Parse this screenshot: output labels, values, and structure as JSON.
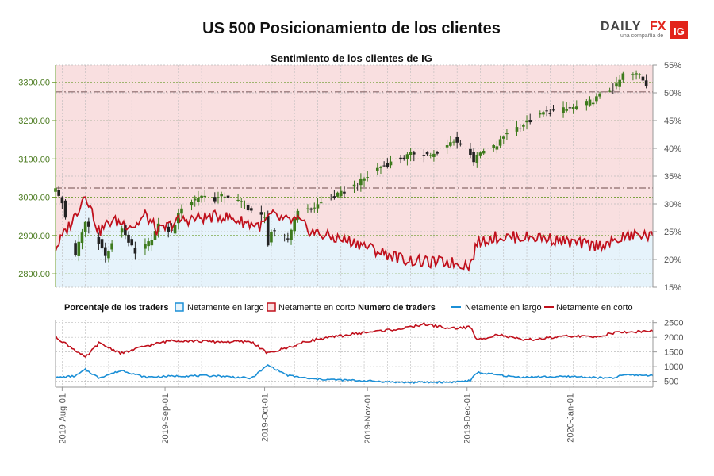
{
  "title": "US 500 Posicionamiento de los clientes",
  "logo": {
    "brand_a": "DAILY",
    "brand_b": "FX",
    "tagline": "una compañía de",
    "badge": "IG"
  },
  "colors": {
    "long": "#1b8fd6",
    "short": "#c0101c",
    "long_fill": "#e6f3fb",
    "short_fill": "#f9dfe0",
    "grid_green": "#6a9a2a",
    "grid_gray": "#bbbbbb",
    "candle_up": "#3d7a1c",
    "candle_down": "#222222",
    "ref_line": "#8a6a6a"
  },
  "chart_data": [
    {
      "type": "line",
      "title": "Sentimiento de los clientes de IG",
      "ylabel_left": "Price",
      "ylim_left": [
        2765,
        3345
      ],
      "yticks_left": [
        "2800.00",
        "2900.00",
        "3000.00",
        "3100.00",
        "3200.00",
        "3300.00"
      ],
      "ylim_right": [
        15,
        55
      ],
      "yticks_right": [
        "15%",
        "20%",
        "25%",
        "30%",
        "35%",
        "40%",
        "45%",
        "50%",
        "55%"
      ],
      "x_start": "2019-07-30",
      "x_end": "2020-01-26",
      "ref_lines": [
        3275,
        3024
      ],
      "price_anchors": [
        [
          "2019-07-30",
          3020
        ],
        [
          "2019-08-01",
          2985
        ],
        [
          "2019-08-05",
          2845
        ],
        [
          "2019-08-06",
          2880
        ],
        [
          "2019-08-08",
          2935
        ],
        [
          "2019-08-12",
          2885
        ],
        [
          "2019-08-14",
          2845
        ],
        [
          "2019-08-19",
          2920
        ],
        [
          "2019-08-23",
          2850
        ],
        [
          "2019-08-27",
          2880
        ],
        [
          "2019-08-30",
          2925
        ],
        [
          "2019-09-03",
          2910
        ],
        [
          "2019-09-06",
          2975
        ],
        [
          "2019-09-12",
          3005
        ],
        [
          "2019-09-16",
          2995
        ],
        [
          "2019-09-19",
          3005
        ],
        [
          "2019-09-24",
          2985
        ],
        [
          "2019-09-27",
          2965
        ],
        [
          "2019-10-01",
          2945
        ],
        [
          "2019-10-02",
          2880
        ],
        [
          "2019-10-03",
          2910
        ],
        [
          "2019-10-08",
          2890
        ],
        [
          "2019-10-11",
          2970
        ],
        [
          "2019-10-14",
          2965
        ],
        [
          "2019-10-18",
          2985
        ],
        [
          "2019-10-24",
          3010
        ],
        [
          "2019-10-30",
          3040
        ],
        [
          "2019-11-04",
          3075
        ],
        [
          "2019-11-08",
          3090
        ],
        [
          "2019-11-15",
          3115
        ],
        [
          "2019-11-22",
          3110
        ],
        [
          "2019-11-27",
          3150
        ],
        [
          "2019-12-02",
          3115
        ],
        [
          "2019-12-03",
          3095
        ],
        [
          "2019-12-05",
          3115
        ],
        [
          "2019-12-10",
          3135
        ],
        [
          "2019-12-13",
          3170
        ],
        [
          "2019-12-18",
          3190
        ],
        [
          "2019-12-24",
          3220
        ],
        [
          "2019-12-31",
          3230
        ],
        [
          "2020-01-03",
          3235
        ],
        [
          "2020-01-06",
          3245
        ],
        [
          "2020-01-08",
          3253
        ],
        [
          "2020-01-10",
          3265
        ],
        [
          "2020-01-15",
          3290
        ],
        [
          "2020-01-17",
          3320
        ],
        [
          "2020-01-22",
          3320
        ],
        [
          "2020-01-24",
          3295
        ]
      ],
      "short_pct_anchors": [
        [
          "2019-07-30",
          22
        ],
        [
          "2019-08-05",
          28
        ],
        [
          "2019-08-08",
          32
        ],
        [
          "2019-08-12",
          25
        ],
        [
          "2019-08-16",
          27
        ],
        [
          "2019-08-23",
          26
        ],
        [
          "2019-08-26",
          28
        ],
        [
          "2019-08-30",
          25
        ],
        [
          "2019-09-05",
          27
        ],
        [
          "2019-09-12",
          27.5
        ],
        [
          "2019-09-18",
          27.8
        ],
        [
          "2019-09-23",
          27
        ],
        [
          "2019-09-30",
          26
        ],
        [
          "2019-10-03",
          28
        ],
        [
          "2019-10-07",
          27
        ],
        [
          "2019-10-11",
          27
        ],
        [
          "2019-10-15",
          25
        ],
        [
          "2019-10-21",
          24
        ],
        [
          "2019-10-29",
          23
        ],
        [
          "2019-11-04",
          21.5
        ],
        [
          "2019-11-12",
          20
        ],
        [
          "2019-11-18",
          19.5
        ],
        [
          "2019-11-25",
          19.5
        ],
        [
          "2019-12-02",
          19
        ],
        [
          "2019-12-04",
          23
        ],
        [
          "2019-12-09",
          24
        ],
        [
          "2019-12-16",
          24
        ],
        [
          "2019-12-23",
          24
        ],
        [
          "2020-01-02",
          23
        ],
        [
          "2020-01-08",
          22.5
        ],
        [
          "2020-01-14",
          23
        ],
        [
          "2020-01-17",
          24
        ],
        [
          "2020-01-22",
          24.5
        ],
        [
          "2020-01-26",
          24
        ]
      ],
      "series": [
        {
          "name": "Netamente en largo",
          "color": "#1b8fd6",
          "values_pct": [
            22,
            17,
            35,
            21,
            23,
            15,
            38,
            22,
            21,
            22,
            18,
            21,
            22,
            19,
            20,
            18,
            17,
            25,
            20,
            19,
            25,
            22,
            24,
            21,
            21,
            23
          ]
        },
        {
          "name": "Netamente en corto",
          "color": "#c0101c",
          "values_pct": [
            78,
            83,
            65,
            79,
            77,
            85,
            62,
            78,
            79,
            78,
            82,
            79,
            78,
            81,
            80,
            82,
            83,
            75,
            80,
            81,
            75,
            78,
            76,
            79,
            79,
            77
          ]
        }
      ]
    },
    {
      "type": "line",
      "title": "Numero de traders",
      "ylim": [
        300,
        2600
      ],
      "yticks": [
        "500",
        "1000",
        "1500",
        "2000",
        "2500"
      ],
      "x_start": "2019-07-30",
      "x_end": "2020-01-26",
      "series": [
        {
          "name": "Netamente en largo",
          "color": "#1b8fd6",
          "anchors": [
            [
              "2019-07-30",
              620
            ],
            [
              "2019-08-05",
              680
            ],
            [
              "2019-08-08",
              900
            ],
            [
              "2019-08-12",
              620
            ],
            [
              "2019-08-19",
              870
            ],
            [
              "2019-08-26",
              640
            ],
            [
              "2019-09-05",
              680
            ],
            [
              "2019-09-16",
              690
            ],
            [
              "2019-09-27",
              600
            ],
            [
              "2019-10-02",
              1050
            ],
            [
              "2019-10-08",
              700
            ],
            [
              "2019-10-15",
              580
            ],
            [
              "2019-10-30",
              520
            ],
            [
              "2019-11-12",
              460
            ],
            [
              "2019-11-26",
              470
            ],
            [
              "2019-12-02",
              520
            ],
            [
              "2019-12-04",
              800
            ],
            [
              "2019-12-16",
              640
            ],
            [
              "2020-01-02",
              660
            ],
            [
              "2020-01-14",
              600
            ],
            [
              "2020-01-17",
              720
            ],
            [
              "2020-01-26",
              700
            ]
          ]
        },
        {
          "name": "Netamente en corto",
          "color": "#c0101c",
          "anchors": [
            [
              "2019-07-30",
              2020
            ],
            [
              "2019-08-05",
              1560
            ],
            [
              "2019-08-08",
              1300
            ],
            [
              "2019-08-12",
              1800
            ],
            [
              "2019-08-19",
              1450
            ],
            [
              "2019-08-26",
              1700
            ],
            [
              "2019-09-03",
              1900
            ],
            [
              "2019-09-16",
              1850
            ],
            [
              "2019-09-27",
              1850
            ],
            [
              "2019-10-02",
              1450
            ],
            [
              "2019-10-08",
              1650
            ],
            [
              "2019-10-15",
              1900
            ],
            [
              "2019-10-30",
              2150
            ],
            [
              "2019-11-12",
              2300
            ],
            [
              "2019-11-18",
              2450
            ],
            [
              "2019-11-26",
              2300
            ],
            [
              "2019-12-02",
              2350
            ],
            [
              "2019-12-04",
              1900
            ],
            [
              "2019-12-10",
              2100
            ],
            [
              "2019-12-18",
              1900
            ],
            [
              "2020-01-02",
              2050
            ],
            [
              "2020-01-08",
              2000
            ],
            [
              "2020-01-14",
              2150
            ],
            [
              "2020-01-26",
              2220
            ]
          ]
        }
      ],
      "xticks": [
        "2019-Aug-01",
        "2019-Sep-01",
        "2019-Oct-01",
        "2019-Nov-01",
        "2019-Dec-01",
        "2020-Jan-01"
      ]
    }
  ],
  "legend": {
    "pct_title": "Porcentaje de los traders",
    "pct_long": "Netamente en largo",
    "pct_short": "Netamente en corto",
    "num_title": "Numero de traders",
    "num_long": "Netamente en largo",
    "num_short": "Netamente en corto"
  }
}
